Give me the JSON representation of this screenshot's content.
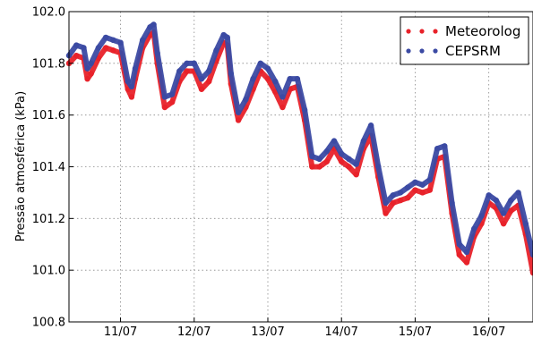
{
  "chart_data": {
    "type": "scatter",
    "title": "",
    "xlabel": "",
    "ylabel": "Pressão atmosférica (kPa)",
    "x_unit": "days (July)",
    "xlim": [
      10.3,
      16.6
    ],
    "ylim": [
      100.8,
      102.0
    ],
    "x_ticks": [
      {
        "value": 11,
        "label": "11/07"
      },
      {
        "value": 12,
        "label": "12/07"
      },
      {
        "value": 13,
        "label": "13/07"
      },
      {
        "value": 14,
        "label": "14/07"
      },
      {
        "value": 15,
        "label": "15/07"
      },
      {
        "value": 16,
        "label": "16/07"
      }
    ],
    "y_ticks": [
      {
        "value": 100.8,
        "label": "100.8"
      },
      {
        "value": 101.0,
        "label": "101.0"
      },
      {
        "value": 101.2,
        "label": "101.2"
      },
      {
        "value": 101.4,
        "label": "101.4"
      },
      {
        "value": 101.6,
        "label": "101.6"
      },
      {
        "value": 101.8,
        "label": "101.8"
      },
      {
        "value": 102.0,
        "label": "102.0"
      }
    ],
    "grid": true,
    "legend_position": "top-right",
    "series": [
      {
        "name": "Meteorolog",
        "color": "#e8222a",
        "x": [
          10.3,
          10.4,
          10.5,
          10.55,
          10.6,
          10.7,
          10.8,
          10.9,
          11.0,
          11.1,
          11.15,
          11.2,
          11.3,
          11.4,
          11.45,
          11.5,
          11.6,
          11.7,
          11.8,
          11.9,
          12.0,
          12.1,
          12.2,
          12.3,
          12.4,
          12.45,
          12.5,
          12.6,
          12.7,
          12.8,
          12.9,
          13.0,
          13.1,
          13.2,
          13.3,
          13.4,
          13.5,
          13.6,
          13.7,
          13.8,
          13.9,
          14.0,
          14.1,
          14.2,
          14.3,
          14.4,
          14.5,
          14.6,
          14.7,
          14.8,
          14.9,
          15.0,
          15.1,
          15.2,
          15.3,
          15.4,
          15.5,
          15.6,
          15.7,
          15.8,
          15.9,
          16.0,
          16.1,
          16.2,
          16.3,
          16.4,
          16.5,
          16.6
        ],
        "y": [
          101.8,
          101.83,
          101.82,
          101.74,
          101.76,
          101.82,
          101.86,
          101.85,
          101.84,
          101.7,
          101.67,
          101.74,
          101.86,
          101.91,
          101.92,
          101.8,
          101.63,
          101.65,
          101.73,
          101.77,
          101.77,
          101.7,
          101.73,
          101.81,
          101.88,
          101.87,
          101.72,
          101.58,
          101.63,
          101.7,
          101.77,
          101.74,
          101.69,
          101.63,
          101.7,
          101.71,
          101.58,
          101.4,
          101.4,
          101.42,
          101.47,
          101.42,
          101.4,
          101.37,
          101.47,
          101.52,
          101.36,
          101.22,
          101.26,
          101.27,
          101.28,
          101.31,
          101.3,
          101.31,
          101.43,
          101.44,
          101.22,
          101.06,
          101.03,
          101.13,
          101.18,
          101.26,
          101.24,
          101.18,
          101.23,
          101.25,
          101.14,
          100.99
        ]
      },
      {
        "name": "CEPSRM",
        "color": "#3b4aa3",
        "x": [
          10.3,
          10.4,
          10.5,
          10.55,
          10.6,
          10.7,
          10.8,
          10.9,
          11.0,
          11.1,
          11.15,
          11.2,
          11.3,
          11.4,
          11.45,
          11.5,
          11.6,
          11.7,
          11.8,
          11.9,
          12.0,
          12.1,
          12.2,
          12.3,
          12.4,
          12.45,
          12.5,
          12.6,
          12.7,
          12.8,
          12.9,
          13.0,
          13.1,
          13.2,
          13.3,
          13.4,
          13.5,
          13.6,
          13.7,
          13.8,
          13.9,
          14.0,
          14.1,
          14.2,
          14.3,
          14.4,
          14.5,
          14.6,
          14.7,
          14.8,
          14.9,
          15.0,
          15.1,
          15.2,
          15.3,
          15.4,
          15.5,
          15.6,
          15.7,
          15.8,
          15.9,
          16.0,
          16.1,
          16.2,
          16.3,
          16.4,
          16.5,
          16.6
        ],
        "y": [
          101.83,
          101.87,
          101.86,
          101.78,
          101.8,
          101.86,
          101.9,
          101.89,
          101.88,
          101.73,
          101.71,
          101.78,
          101.89,
          101.94,
          101.95,
          101.84,
          101.67,
          101.68,
          101.77,
          101.8,
          101.8,
          101.74,
          101.77,
          101.85,
          101.91,
          101.9,
          101.76,
          101.61,
          101.66,
          101.74,
          101.8,
          101.78,
          101.73,
          101.67,
          101.74,
          101.74,
          101.62,
          101.44,
          101.43,
          101.46,
          101.5,
          101.45,
          101.43,
          101.41,
          101.5,
          101.56,
          101.4,
          101.26,
          101.29,
          101.3,
          101.32,
          101.34,
          101.33,
          101.35,
          101.47,
          101.48,
          101.26,
          101.1,
          101.07,
          101.16,
          101.21,
          101.29,
          101.27,
          101.22,
          101.27,
          101.3,
          101.18,
          101.06
        ]
      }
    ]
  }
}
